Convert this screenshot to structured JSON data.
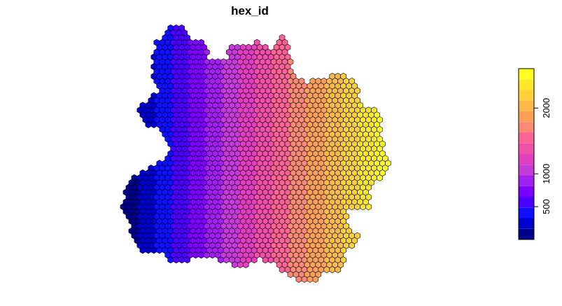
{
  "title": "hex_id",
  "legend": {
    "tick_labels": [
      "500",
      "1000",
      "2000"
    ],
    "tick_values": [
      500,
      1000,
      2000
    ],
    "range": [
      1,
      2600
    ],
    "position": "right",
    "colors": [
      "#00008B",
      "#0000CD",
      "#1010FF",
      "#4B00FF",
      "#7B00FF",
      "#A020F0",
      "#C23CD8",
      "#E040C0",
      "#F050A8",
      "#FF6496",
      "#FF8A78",
      "#FFA05A",
      "#FFB84A",
      "#FFD03A",
      "#FFE82A",
      "#FFFF20"
    ]
  },
  "map": {
    "encoding": "hex grid colored by hex_id, increasing west to east",
    "palette_low": "#00008B",
    "palette_high": "#FFFF00",
    "cell_border": "#000000"
  }
}
